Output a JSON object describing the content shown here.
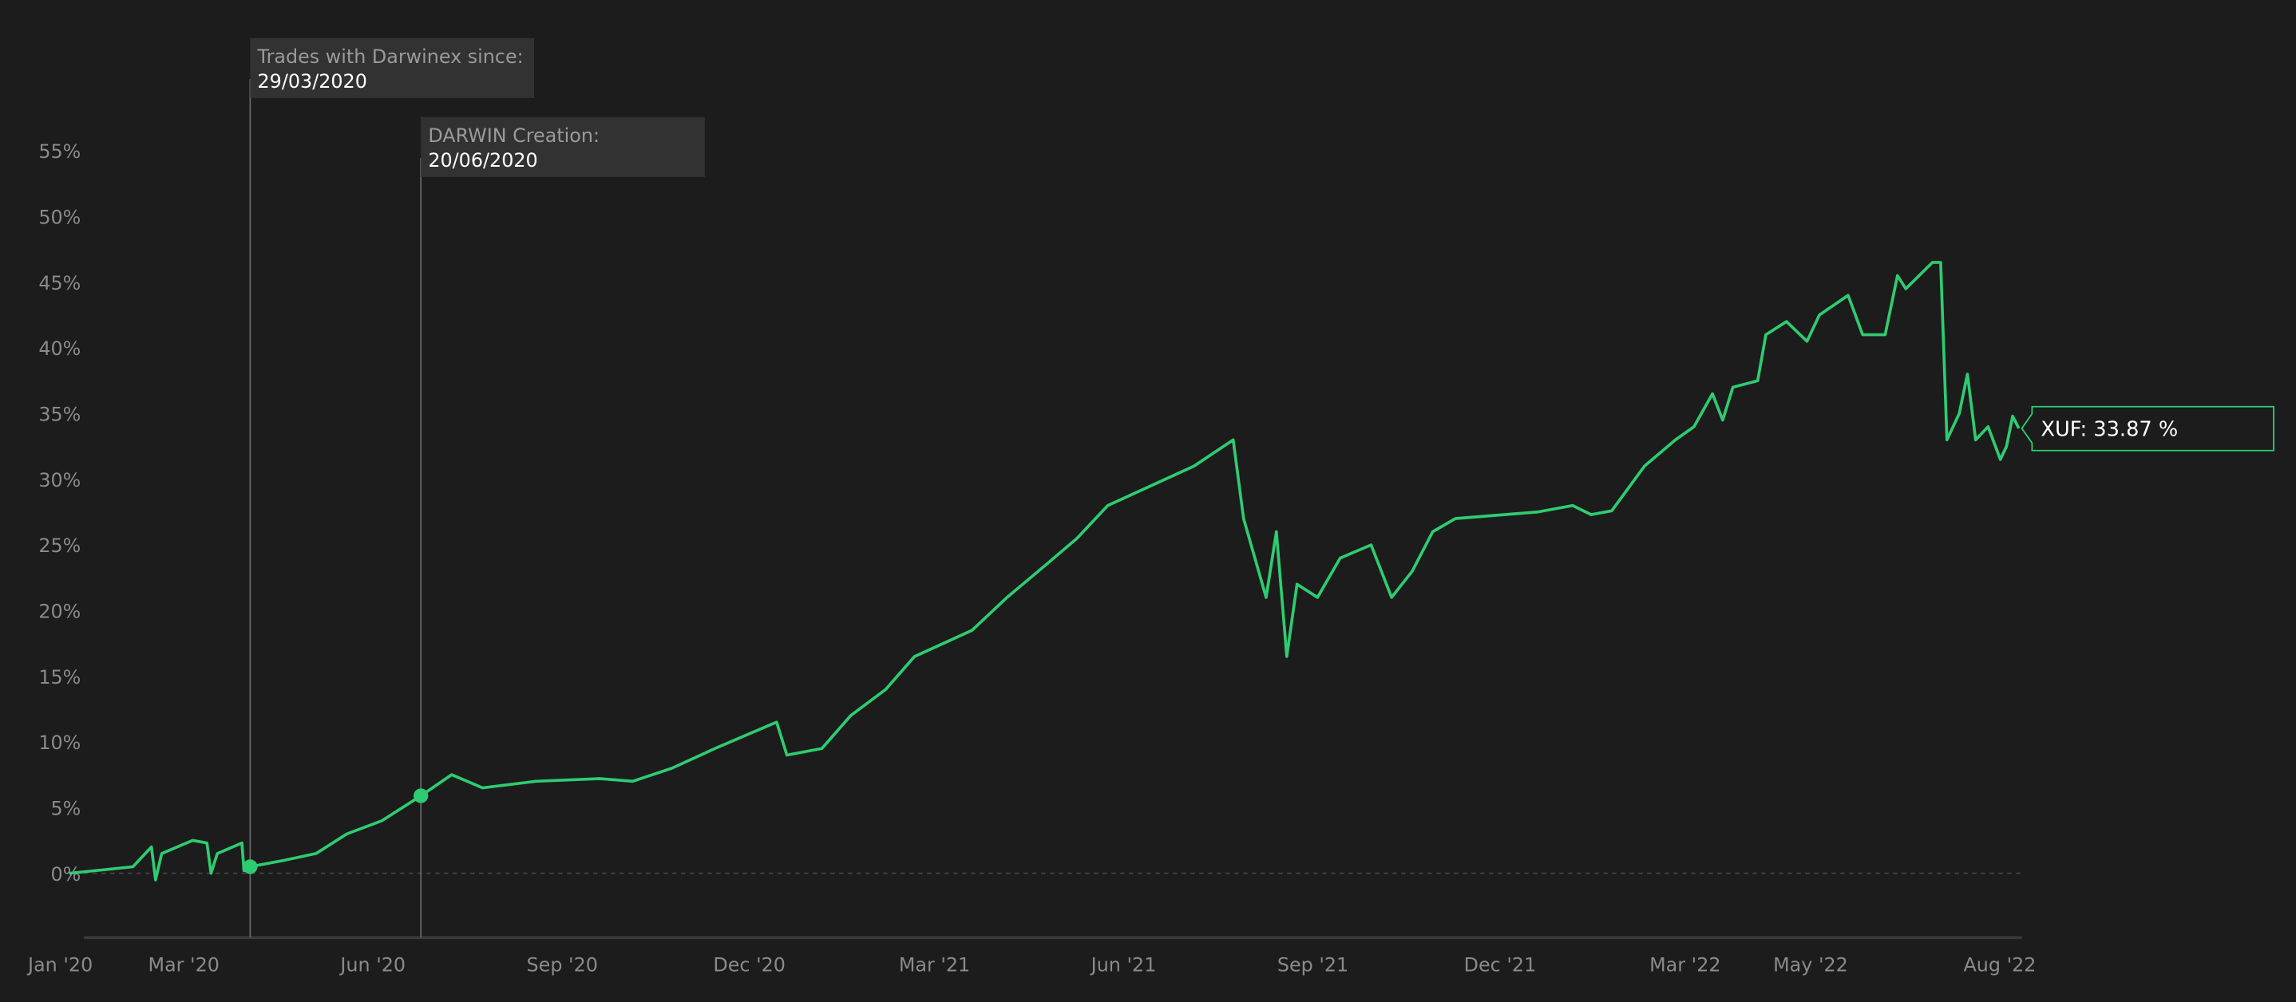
{
  "chart_data": {
    "type": "line",
    "title": "",
    "xlabel": "",
    "ylabel": "",
    "ylim": [
      -5,
      58
    ],
    "xlim": [
      "2020-01-01",
      "2022-08-06"
    ],
    "grid": false,
    "line_color": "#2ecc71",
    "y_ticks": [
      "0%",
      "5%",
      "10%",
      "15%",
      "20%",
      "25%",
      "30%",
      "35%",
      "40%",
      "45%",
      "50%",
      "55%"
    ],
    "y_tick_values": [
      0,
      5,
      10,
      15,
      20,
      25,
      30,
      35,
      40,
      45,
      50,
      55
    ],
    "x_ticks": [
      {
        "label": "Jan '20",
        "date": "2020-01-01"
      },
      {
        "label": "Mar '20",
        "date": "2020-03-01"
      },
      {
        "label": "Jun '20",
        "date": "2020-06-01"
      },
      {
        "label": "Sep '20",
        "date": "2020-09-01"
      },
      {
        "label": "Dec '20",
        "date": "2020-12-01"
      },
      {
        "label": "Mar '21",
        "date": "2021-03-01"
      },
      {
        "label": "Jun '21",
        "date": "2021-06-01"
      },
      {
        "label": "Sep '21",
        "date": "2021-09-01"
      },
      {
        "label": "Dec '21",
        "date": "2021-12-01"
      },
      {
        "label": "Mar '22",
        "date": "2022-03-01"
      },
      {
        "label": "May '22",
        "date": "2022-05-01"
      },
      {
        "label": "Aug '22",
        "date": "2022-08-01"
      }
    ],
    "annotations": [
      {
        "label": "Trades with Darwinex since:",
        "value": "29/03/2020",
        "date": "2020-03-29",
        "y": 0.5
      },
      {
        "label": "DARWIN Creation:",
        "value": "20/06/2020",
        "date": "2020-06-20",
        "y": 5.9
      }
    ],
    "tooltip": {
      "text": "XUF: 33.87 %",
      "date": "2022-08-06",
      "y": 33.87
    },
    "series": [
      {
        "x": [
          "2020-01-01",
          "2020-01-20",
          "2020-02-01",
          "2020-02-10",
          "2020-02-12",
          "2020-02-15",
          "2020-03-01",
          "2020-03-08",
          "2020-03-10",
          "2020-03-13",
          "2020-03-25",
          "2020-03-26",
          "2020-03-29",
          "2020-04-15",
          "2020-04-30",
          "2020-05-15",
          "2020-06-01",
          "2020-06-20",
          "2020-07-05",
          "2020-07-20",
          "2020-08-15",
          "2020-09-15",
          "2020-10-01",
          "2020-10-20",
          "2020-11-10",
          "2020-11-25",
          "2020-12-10",
          "2020-12-15",
          "2021-01-01",
          "2021-01-15",
          "2021-02-01",
          "2021-02-15",
          "2021-03-01",
          "2021-03-15",
          "2021-04-01",
          "2021-04-20",
          "2021-05-05",
          "2021-05-20",
          "2021-06-10",
          "2021-07-01",
          "2021-07-20",
          "2021-07-25",
          "2021-08-05",
          "2021-08-10",
          "2021-08-15",
          "2021-08-20",
          "2021-08-30",
          "2021-09-10",
          "2021-09-25",
          "2021-10-05",
          "2021-10-15",
          "2021-10-25",
          "2021-11-05",
          "2021-12-15",
          "2022-01-01",
          "2022-01-10",
          "2022-01-20",
          "2022-02-05",
          "2022-02-20",
          "2022-03-01",
          "2022-03-10",
          "2022-03-15",
          "2022-03-20",
          "2022-04-01",
          "2022-04-05",
          "2022-04-15",
          "2022-04-25",
          "2022-05-01",
          "2022-05-15",
          "2022-05-22",
          "2022-06-02",
          "2022-06-08",
          "2022-06-12",
          "2022-06-25",
          "2022-06-29",
          "2022-07-02",
          "2022-07-08",
          "2022-07-12",
          "2022-07-16",
          "2022-07-22",
          "2022-07-28",
          "2022-07-31",
          "2022-08-03",
          "2022-08-06"
        ],
        "values": [
          0,
          0.3,
          0.5,
          2,
          -0.5,
          1.5,
          2.5,
          2.3,
          0,
          1.5,
          2.3,
          0.2,
          0.5,
          1,
          1.5,
          3,
          4,
          5.9,
          7.5,
          6.5,
          7,
          7.2,
          7,
          8,
          9.5,
          10.5,
          11.5,
          9,
          9.5,
          12,
          14,
          16.5,
          17.5,
          18.5,
          21,
          23.5,
          25.5,
          28,
          29.5,
          31,
          33,
          27,
          21,
          26,
          16.5,
          22,
          21,
          24,
          25,
          21,
          23,
          26,
          27,
          27.5,
          28,
          27.3,
          27.6,
          31,
          33,
          34,
          36.5,
          34.5,
          37,
          37.5,
          41,
          42,
          40.5,
          42.5,
          44,
          41,
          41,
          45.5,
          44.5,
          46.5,
          46.5,
          33,
          35,
          38,
          33,
          34,
          31.5,
          32.5,
          34.8,
          33.87
        ]
      }
    ]
  }
}
